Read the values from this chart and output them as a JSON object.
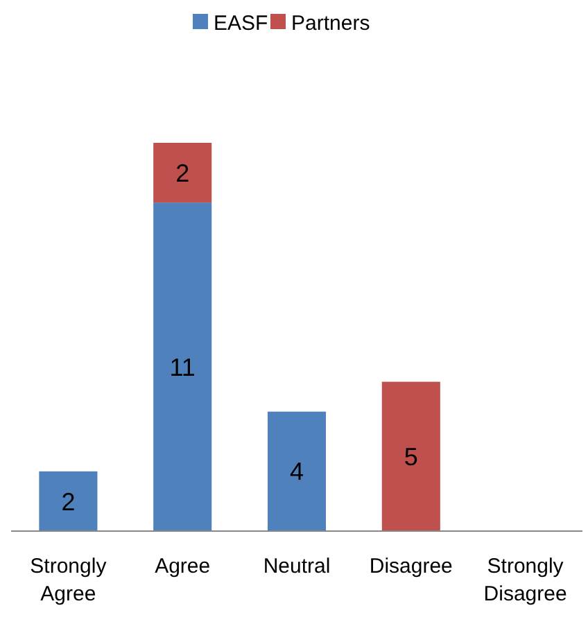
{
  "chart_data": {
    "type": "bar",
    "stacked": true,
    "categories": [
      "Strongly Agree",
      "Agree",
      "Neutral",
      "Disagree",
      "Strongly Disagree"
    ],
    "series": [
      {
        "name": "EASF",
        "color": "#4f81bd",
        "values": [
          2,
          11,
          4,
          null,
          null
        ]
      },
      {
        "name": "Partners",
        "color": "#c0504d",
        "values": [
          null,
          2,
          null,
          5,
          null
        ]
      }
    ],
    "data_labels": true,
    "legend": "top"
  }
}
